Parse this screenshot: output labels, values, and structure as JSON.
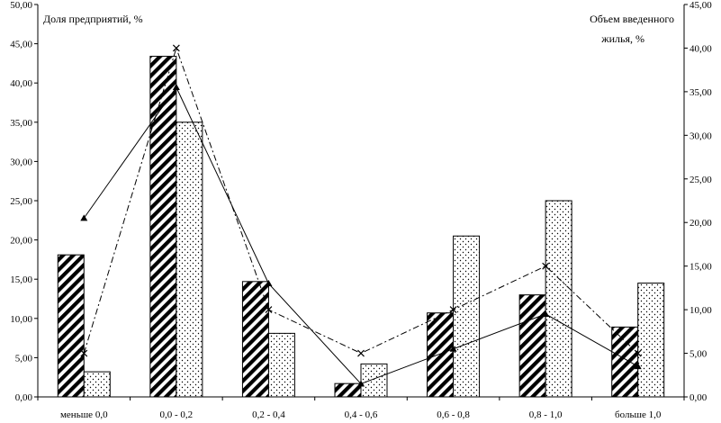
{
  "chart_data": {
    "type": "bar",
    "categories": [
      "меньше 0,0",
      "0,0 - 0,2",
      "0,2 - 0,4",
      "0,4 - 0,6",
      "0,6 - 0,8",
      "0,8 - 1,0",
      "больше 1,0"
    ],
    "y_left_label": "Доля предприятий, %",
    "y_right_label_line1": "Объем введенного",
    "y_right_label_line2": "жилья, %",
    "y_left_ticks": [
      "0,00",
      "5,00",
      "10,00",
      "15,00",
      "20,00",
      "25,00",
      "30,00",
      "35,00",
      "40,00",
      "45,00",
      "50,00"
    ],
    "y_right_ticks": [
      "0,00",
      "5,00",
      "10,00",
      "15,00",
      "20,00",
      "25,00",
      "30,00",
      "35,00",
      "40,00",
      "45,00"
    ],
    "y_left_lim": [
      0,
      50
    ],
    "y_right_lim": [
      0,
      45
    ],
    "bar_series": [
      {
        "values": [
          18.1,
          43.4,
          14.7,
          1.7,
          10.7,
          13.0,
          8.9
        ],
        "axis": "left",
        "fill": "hatched"
      },
      {
        "values": [
          3.2,
          35.0,
          8.1,
          4.2,
          20.5,
          25.0,
          14.5
        ],
        "axis": "left",
        "fill": "dotted"
      }
    ],
    "line_series": [
      {
        "values": [
          20.5,
          35.5,
          13.0,
          1.5,
          5.5,
          9.5,
          3.5
        ],
        "axis": "right",
        "style": "solid",
        "marker": "triangle"
      },
      {
        "values": [
          5.0,
          40.0,
          10.0,
          5.0,
          10.0,
          15.0,
          5.0
        ],
        "axis": "right",
        "style": "dash-dot",
        "marker": "x"
      }
    ],
    "grid": false,
    "colors": {
      "ink": "#000000",
      "background": "#ffffff"
    }
  }
}
